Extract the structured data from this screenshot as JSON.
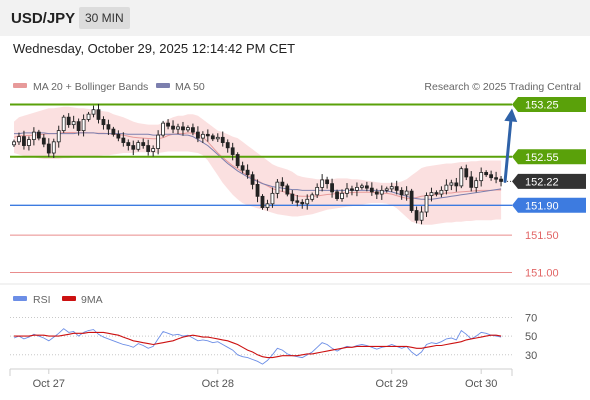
{
  "header": {
    "symbol": "USD/JPY",
    "timeframe": "30 MIN",
    "datetime": "Wednesday, October 29, 2025 12:14:42 PM CET"
  },
  "legend": {
    "ma20": "MA 20 + Bollinger Bands",
    "ma50": "MA 50",
    "credit": "Research © 2025 Trading Central",
    "rsi": "RSI",
    "rsi_ma": "9MA"
  },
  "colors": {
    "resistance": "#5aa10a",
    "support": "#3d7be0",
    "lower": "#e26666",
    "current": "#333333",
    "candle": "#222222",
    "bollinger": "#fadada",
    "ma20": "#e79a9a",
    "ma50": "#7c7fae",
    "arrow": "#2f62a8",
    "rsi": "#6c8ee6",
    "rsi_ma": "#cc1111"
  },
  "chart_data": [
    {
      "type": "candlestick",
      "x_labels": [
        "Oct 27",
        "Oct 28",
        "Oct 29",
        "Oct 30"
      ],
      "ylim": [
        150.9,
        153.35
      ],
      "current_price": 152.22,
      "levels": [
        {
          "label": "153.25",
          "value": 153.25,
          "kind": "resistance"
        },
        {
          "label": "152.55",
          "value": 152.55,
          "kind": "resistance"
        },
        {
          "label": "152.22",
          "value": 152.22,
          "kind": "current"
        },
        {
          "label": "151.90",
          "value": 151.9,
          "kind": "support"
        },
        {
          "label": "151.50",
          "value": 151.5,
          "kind": "lower"
        },
        {
          "label": "151.00",
          "value": 151.0,
          "kind": "lower"
        }
      ],
      "forecast_target": 153.25,
      "close": [
        152.75,
        152.82,
        152.7,
        152.78,
        152.88,
        152.8,
        152.72,
        152.6,
        152.75,
        152.9,
        153.08,
        152.98,
        153.02,
        152.9,
        153.05,
        153.12,
        153.18,
        153.05,
        152.98,
        152.92,
        152.85,
        152.8,
        152.74,
        152.7,
        152.65,
        152.74,
        152.7,
        152.62,
        152.66,
        152.84,
        153.0,
        152.96,
        152.92,
        152.95,
        152.91,
        152.94,
        152.88,
        152.8,
        152.85,
        152.83,
        152.79,
        152.81,
        152.74,
        152.67,
        152.58,
        152.43,
        152.37,
        152.31,
        152.18,
        152.02,
        151.87,
        151.92,
        152.06,
        152.21,
        152.16,
        152.05,
        151.96,
        151.94,
        151.92,
        151.98,
        152.04,
        152.14,
        152.24,
        152.19,
        152.08,
        151.99,
        152.06,
        152.12,
        152.1,
        152.14,
        152.16,
        152.13,
        152.08,
        152.05,
        152.1,
        152.12,
        152.15,
        152.1,
        152.04,
        152.09,
        151.83,
        151.7,
        151.81,
        152.03,
        152.07,
        152.05,
        152.1,
        152.17,
        152.2,
        152.16,
        152.39,
        152.28,
        152.14,
        152.23,
        152.34,
        152.31,
        152.27,
        152.25,
        152.22
      ],
      "bb_upper": [
        153.02,
        153.08,
        153.1,
        153.12,
        153.14,
        153.16,
        153.18,
        153.2,
        153.2,
        153.21,
        153.22,
        153.22,
        153.21,
        153.2,
        153.2,
        153.19,
        153.18,
        153.17,
        153.16,
        153.15,
        153.12,
        153.1,
        153.08,
        153.05,
        153.02,
        153.0,
        152.99,
        152.98,
        152.98,
        152.98,
        153.0,
        153.05,
        153.08,
        153.1,
        153.1,
        153.12,
        153.12,
        153.1,
        153.05,
        153.0,
        152.95,
        152.9,
        152.88,
        152.85,
        152.82,
        152.8,
        152.75,
        152.7,
        152.65,
        152.6,
        152.55,
        152.5,
        152.45,
        152.42,
        152.4,
        152.38,
        152.35,
        152.3,
        152.28,
        152.27,
        152.26,
        152.25,
        152.25,
        152.25,
        152.25,
        152.26,
        152.26,
        152.26,
        152.25,
        152.25,
        152.24,
        152.23,
        152.22,
        152.21,
        152.2,
        152.2,
        152.2,
        152.2,
        152.22,
        152.25,
        152.3,
        152.35,
        152.4,
        152.42,
        152.43,
        152.44,
        152.45,
        152.46,
        152.46,
        152.47,
        152.48,
        152.48,
        152.49,
        152.49,
        152.5,
        152.5,
        152.5,
        152.5,
        152.5
      ],
      "bb_lower": [
        152.6,
        152.58,
        152.56,
        152.55,
        152.54,
        152.53,
        152.52,
        152.52,
        152.52,
        152.52,
        152.53,
        152.53,
        152.54,
        152.54,
        152.55,
        152.55,
        152.56,
        152.56,
        152.57,
        152.57,
        152.58,
        152.59,
        152.6,
        152.6,
        152.6,
        152.61,
        152.61,
        152.61,
        152.6,
        152.6,
        152.61,
        152.62,
        152.62,
        152.62,
        152.62,
        152.62,
        152.61,
        152.6,
        152.57,
        152.5,
        152.4,
        152.3,
        152.2,
        152.12,
        152.04,
        151.98,
        151.93,
        151.9,
        151.88,
        151.86,
        151.84,
        151.82,
        151.8,
        151.78,
        151.77,
        151.76,
        151.75,
        151.75,
        151.76,
        151.77,
        151.78,
        151.8,
        151.82,
        151.84,
        151.85,
        151.86,
        151.87,
        151.88,
        151.89,
        151.9,
        151.91,
        151.92,
        151.93,
        151.93,
        151.93,
        151.92,
        151.9,
        151.86,
        151.8,
        151.74,
        151.68,
        151.66,
        151.64,
        151.64,
        151.64,
        151.65,
        151.66,
        151.67,
        151.67,
        151.68,
        151.68,
        151.69,
        151.69,
        151.7,
        151.7,
        151.7,
        151.7,
        151.71,
        151.71
      ],
      "ma50": [
        152.86,
        152.86,
        152.87,
        152.87,
        152.87,
        152.87,
        152.87,
        152.86,
        152.86,
        152.86,
        152.86,
        152.86,
        152.86,
        152.87,
        152.87,
        152.87,
        152.87,
        152.86,
        152.86,
        152.86,
        152.86,
        152.86,
        152.86,
        152.85,
        152.85,
        152.85,
        152.85,
        152.85,
        152.84,
        152.84,
        152.85,
        152.85,
        152.85,
        152.85,
        152.84,
        152.84,
        152.82,
        152.78,
        152.74,
        152.7,
        152.64,
        152.58,
        152.52,
        152.46,
        152.41,
        152.36,
        152.32,
        152.28,
        152.25,
        152.22,
        152.19,
        152.17,
        152.15,
        152.14,
        152.13,
        152.12,
        152.11,
        152.11,
        152.1,
        152.1,
        152.1,
        152.1,
        152.1,
        152.1,
        152.1,
        152.1,
        152.1,
        152.1,
        152.1,
        152.1,
        152.1,
        152.1,
        152.1,
        152.1,
        152.09,
        152.09,
        152.08,
        152.06,
        152.04,
        152.02,
        152.0,
        151.99,
        151.98,
        151.98,
        151.98,
        151.99,
        152.0,
        152.01,
        152.02,
        152.03,
        152.04,
        152.05,
        152.06,
        152.07,
        152.08,
        152.09,
        152.1,
        152.11,
        152.12
      ]
    },
    {
      "type": "line",
      "name": "RSI",
      "ylim": [
        18,
        78
      ],
      "y_ticks": [
        70,
        50,
        30
      ],
      "rsi": [
        48,
        50,
        47,
        49,
        52,
        50,
        48,
        45,
        49,
        53,
        58,
        54,
        55,
        50,
        54,
        56,
        57,
        52,
        49,
        47,
        45,
        43,
        41,
        40,
        38,
        42,
        40,
        37,
        39,
        47,
        55,
        53,
        51,
        52,
        50,
        51,
        48,
        45,
        46,
        45,
        43,
        44,
        41,
        38,
        35,
        30,
        28,
        27,
        25,
        23,
        20,
        24,
        30,
        37,
        35,
        31,
        29,
        28,
        27,
        30,
        33,
        38,
        43,
        41,
        37,
        34,
        37,
        39,
        38,
        40,
        41,
        40,
        38,
        36,
        38,
        39,
        41,
        39,
        37,
        39,
        33,
        29,
        33,
        41,
        43,
        42,
        44,
        47,
        48,
        46,
        56,
        52,
        47,
        50,
        54,
        53,
        51,
        50,
        49
      ],
      "ma": [
        50,
        50,
        50,
        50,
        51,
        51,
        51,
        50,
        50,
        50,
        51,
        52,
        53,
        53,
        53,
        54,
        54,
        54,
        54,
        53,
        52,
        51,
        49,
        47,
        45,
        44,
        43,
        42,
        41,
        42,
        43,
        44,
        45,
        47,
        49,
        50,
        51,
        50,
        49,
        49,
        48,
        47,
        46,
        45,
        43,
        41,
        38,
        35,
        33,
        30,
        28,
        27,
        27,
        28,
        29,
        29,
        29,
        29,
        30,
        31,
        31,
        32,
        33,
        34,
        35,
        36,
        37,
        38,
        38,
        39,
        39,
        39,
        39,
        39,
        39,
        39,
        39,
        39,
        39,
        39,
        38,
        37,
        37,
        38,
        39,
        40,
        40,
        41,
        42,
        43,
        44,
        46,
        47,
        48,
        49,
        50,
        51,
        51,
        50
      ]
    }
  ]
}
